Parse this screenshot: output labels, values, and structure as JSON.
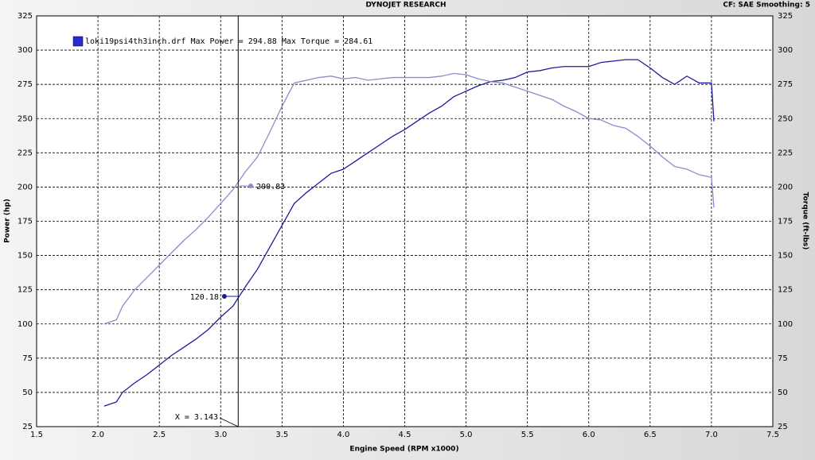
{
  "chart_data": {
    "type": "line",
    "title": "DYNOJET RESEARCH",
    "subtitle": "CF: SAE  Smoothing: 5",
    "legend_text": "loki19psi4th3inch.drf Max Power = 294.88 Max Torque = 284.61",
    "legend_color": "#2a2ad0",
    "x_label": "Engine Speed (RPM x1000)",
    "y_label": "Power (hp)",
    "y2_label": "Torque (ft-lbs)",
    "xlim": [
      1.5,
      7.5
    ],
    "xticks": [
      1.5,
      {
        "value": 2,
        "label": "2.0"
      },
      2.5,
      {
        "value": 3,
        "label": "3.0"
      },
      3.5,
      {
        "value": 4,
        "label": "4.0"
      },
      4.5,
      {
        "value": 5,
        "label": "5.0"
      },
      5.5,
      {
        "value": 6,
        "label": "6.0"
      },
      6.5,
      {
        "value": 7,
        "label": "7.0"
      },
      7.5
    ],
    "ylim": [
      25,
      325
    ],
    "yticks": [
      25,
      50,
      75,
      100,
      125,
      150,
      175,
      200,
      225,
      250,
      275,
      300,
      325
    ],
    "y2lim": [
      25,
      325
    ],
    "y2ticks": [
      25,
      50,
      75,
      100,
      125,
      150,
      175,
      200,
      225,
      250,
      275,
      300,
      325
    ],
    "grid": true,
    "x": [
      2.05,
      2.15,
      2.2,
      2.3,
      2.4,
      2.5,
      2.6,
      2.7,
      2.8,
      2.9,
      3.0,
      3.1,
      3.2,
      3.3,
      3.4,
      3.5,
      3.6,
      3.7,
      3.8,
      3.9,
      4.0,
      4.1,
      4.2,
      4.3,
      4.4,
      4.5,
      4.6,
      4.7,
      4.8,
      4.9,
      5.0,
      5.1,
      5.2,
      5.3,
      5.4,
      5.5,
      5.6,
      5.7,
      5.8,
      5.9,
      6.0,
      6.1,
      6.2,
      6.3,
      6.4,
      6.5,
      6.6,
      6.7,
      6.8,
      6.9,
      7.0,
      7.02
    ],
    "series": [
      {
        "color": "#1c1c9c",
        "values": [
          40,
          43,
          50,
          57,
          63,
          70,
          77,
          83,
          89,
          96,
          105,
          113,
          127,
          140,
          156,
          172,
          188,
          196,
          203,
          210,
          213,
          219,
          225,
          231,
          237,
          242,
          248,
          254,
          259,
          266,
          270,
          274,
          277,
          278,
          280,
          284,
          285,
          287,
          288,
          288,
          288,
          291,
          292,
          293,
          293,
          287,
          280,
          275,
          281,
          276,
          276,
          248
        ]
      },
      {
        "color": "#8c8cc8",
        "axis": "y2",
        "values": [
          100,
          103,
          113,
          125,
          134,
          143,
          152,
          161,
          169,
          178,
          188,
          198,
          211,
          222,
          240,
          259,
          276,
          278,
          280,
          281,
          279,
          280,
          278,
          279,
          280,
          280,
          280,
          280,
          281,
          283,
          282,
          279,
          277,
          276,
          273,
          270,
          267,
          264,
          259,
          255,
          250,
          249,
          245,
          243,
          237,
          230,
          222,
          215,
          213,
          209,
          207,
          185
        ]
      }
    ],
    "cursor": {
      "value": 3.143,
      "label": "X = 3.143"
    },
    "annotations": [
      {
        "x": 3.245,
        "value": 200.83,
        "color": "#8c8cc8",
        "axis": "y2"
      },
      {
        "x": 3.03,
        "value": 120.18,
        "color": "#1c1c9c"
      }
    ]
  }
}
